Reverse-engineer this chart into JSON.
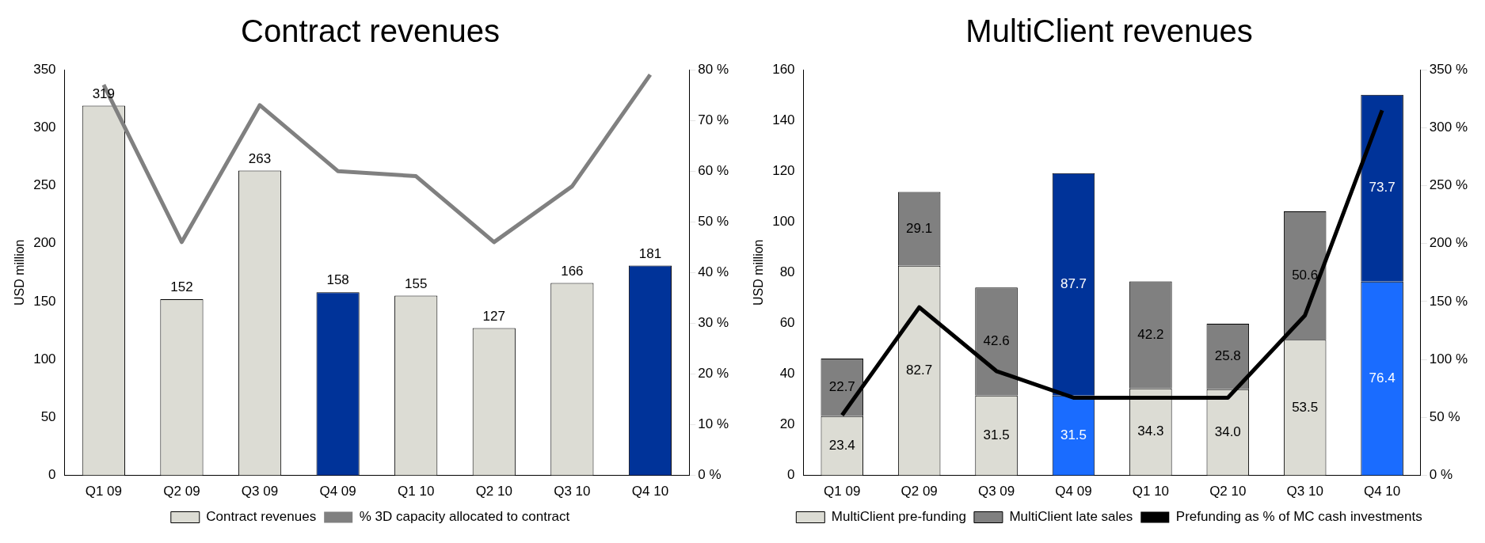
{
  "chart_data": [
    {
      "type": "bar",
      "title": "Contract revenues",
      "ylabel": "USD million",
      "categories": [
        "Q1 09",
        "Q2 09",
        "Q3 09",
        "Q4 09",
        "Q1 10",
        "Q2 10",
        "Q3 10",
        "Q4 10"
      ],
      "series": [
        {
          "name": "Contract revenues",
          "color": "#dcdcd4",
          "colors": [
            "#dcdcd4",
            "#dcdcd4",
            "#dcdcd4",
            "#003399",
            "#dcdcd4",
            "#dcdcd4",
            "#dcdcd4",
            "#003399"
          ],
          "values": [
            319,
            152,
            263,
            158,
            155,
            127,
            166,
            181
          ],
          "value_labels": [
            "319",
            "152",
            "263",
            "158",
            "155",
            "127",
            "166",
            "181"
          ]
        },
        {
          "name": "% 3D capacity allocated to contract",
          "type": "line",
          "axis": "y2",
          "color": "#808080",
          "marker": "none",
          "values": [
            77,
            46,
            73,
            60,
            59,
            46,
            57,
            79
          ]
        }
      ],
      "ylim": [
        0,
        350
      ],
      "yticks": [
        0,
        50,
        100,
        150,
        200,
        250,
        300,
        350
      ],
      "y2lim": [
        0,
        80
      ],
      "y2ticks": [
        {
          "value": 0,
          "label": "0 %"
        },
        {
          "value": 10,
          "label": "10 %"
        },
        {
          "value": 20,
          "label": "20 %"
        },
        {
          "value": 30,
          "label": "30 %"
        },
        {
          "value": 40,
          "label": "40 %"
        },
        {
          "value": 50,
          "label": "50 %"
        },
        {
          "value": 60,
          "label": "60 %"
        },
        {
          "value": 70,
          "label": "70 %"
        },
        {
          "value": 80,
          "label": "80 %"
        }
      ],
      "grid": false,
      "legend": "bottom"
    },
    {
      "type": "bar",
      "title": "MultiClient revenues",
      "ylabel": "USD million",
      "stacked": true,
      "categories": [
        "Q1 09",
        "Q2 09",
        "Q3 09",
        "Q4 09",
        "Q1 10",
        "Q2 10",
        "Q3 10",
        "Q4 10"
      ],
      "series": [
        {
          "name": "MultiClient pre-funding",
          "color": "#dcdcd4",
          "colors": [
            "#dcdcd4",
            "#dcdcd4",
            "#dcdcd4",
            "#1a6cff",
            "#dcdcd4",
            "#dcdcd4",
            "#dcdcd4",
            "#1a6cff"
          ],
          "values": [
            23.4,
            82.7,
            31.5,
            31.5,
            34.3,
            34.0,
            53.5,
            76.4
          ],
          "value_labels": [
            "23.4",
            "82.7",
            "31.5",
            "31.5",
            "34.3",
            "34.0",
            "53.5",
            "76.4"
          ]
        },
        {
          "name": "MultiClient late sales",
          "color": "#808080",
          "colors": [
            "#808080",
            "#808080",
            "#808080",
            "#003399",
            "#808080",
            "#808080",
            "#808080",
            "#003399"
          ],
          "values": [
            22.7,
            29.1,
            42.6,
            87.7,
            42.2,
            25.8,
            50.6,
            73.7
          ],
          "value_labels": [
            "22.7",
            "29.1",
            "42.6",
            "87.7",
            "42.2",
            "25.8",
            "50.6",
            "73.7"
          ]
        },
        {
          "name": "Prefunding as % of MC cash investments",
          "type": "line",
          "axis": "y2",
          "color": "#000000",
          "marker": "none",
          "values": [
            52,
            145,
            90,
            67,
            67,
            67,
            138,
            315
          ]
        }
      ],
      "ylim": [
        0,
        160
      ],
      "yticks": [
        0,
        20,
        40,
        60,
        80,
        100,
        120,
        140,
        160
      ],
      "y2lim": [
        0,
        350
      ],
      "y2ticks": [
        {
          "value": 0,
          "label": "0 %"
        },
        {
          "value": 50,
          "label": "50 %"
        },
        {
          "value": 100,
          "label": "100 %"
        },
        {
          "value": 150,
          "label": "150 %"
        },
        {
          "value": 200,
          "label": "200 %"
        },
        {
          "value": 250,
          "label": "250 %"
        },
        {
          "value": 300,
          "label": "300 %"
        },
        {
          "value": 350,
          "label": "350 %"
        }
      ],
      "grid": false,
      "legend": "bottom"
    }
  ]
}
